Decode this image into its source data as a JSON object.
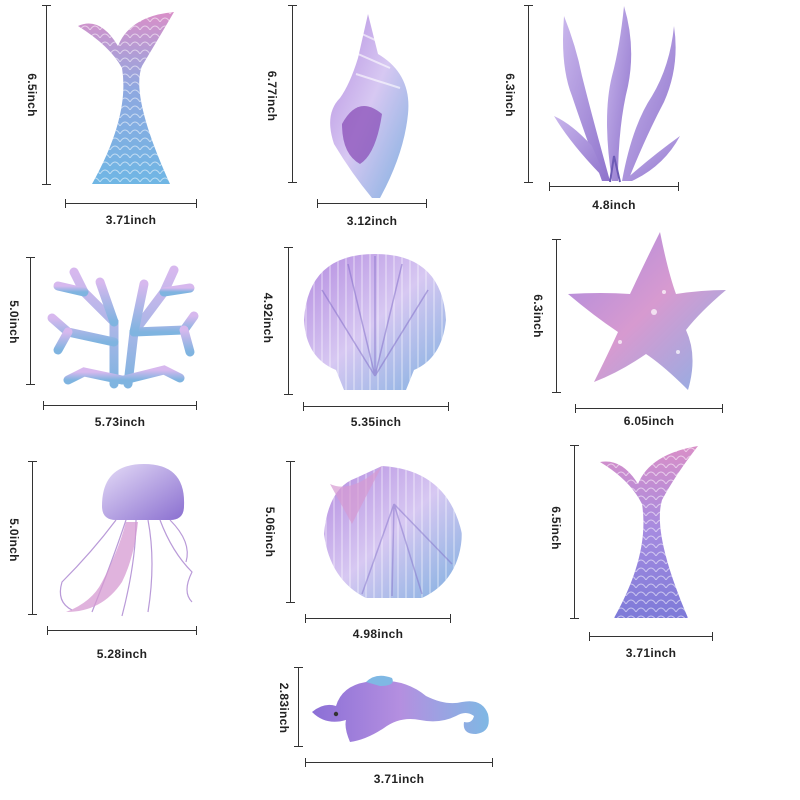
{
  "stickers": [
    {
      "name": "mermaid-tail-blue",
      "width": "3.71inch",
      "height": "6.5inch"
    },
    {
      "name": "conch-shell",
      "width": "3.12inch",
      "height": "6.77inch"
    },
    {
      "name": "seaweed",
      "width": "4.8inch",
      "height": "6.3inch"
    },
    {
      "name": "coral",
      "width": "5.73inch",
      "height": "5.0inch"
    },
    {
      "name": "scallop-shell",
      "width": "5.35inch",
      "height": "4.92inch"
    },
    {
      "name": "starfish",
      "width": "6.05inch",
      "height": "6.3inch"
    },
    {
      "name": "jellyfish",
      "width": "5.28inch",
      "height": "5.0inch"
    },
    {
      "name": "clam-shell",
      "width": "4.98inch",
      "height": "5.06inch"
    },
    {
      "name": "mermaid-tail-purple",
      "width": "3.71inch",
      "height": "6.5inch"
    },
    {
      "name": "seahorse",
      "width": "3.71inch",
      "height": "2.83inch"
    }
  ],
  "colors": {
    "purple": "#9b7fd4",
    "lavender": "#c9b6ec",
    "blue": "#7fb0e0",
    "pink": "#d98fc8",
    "ink": "#333333"
  }
}
